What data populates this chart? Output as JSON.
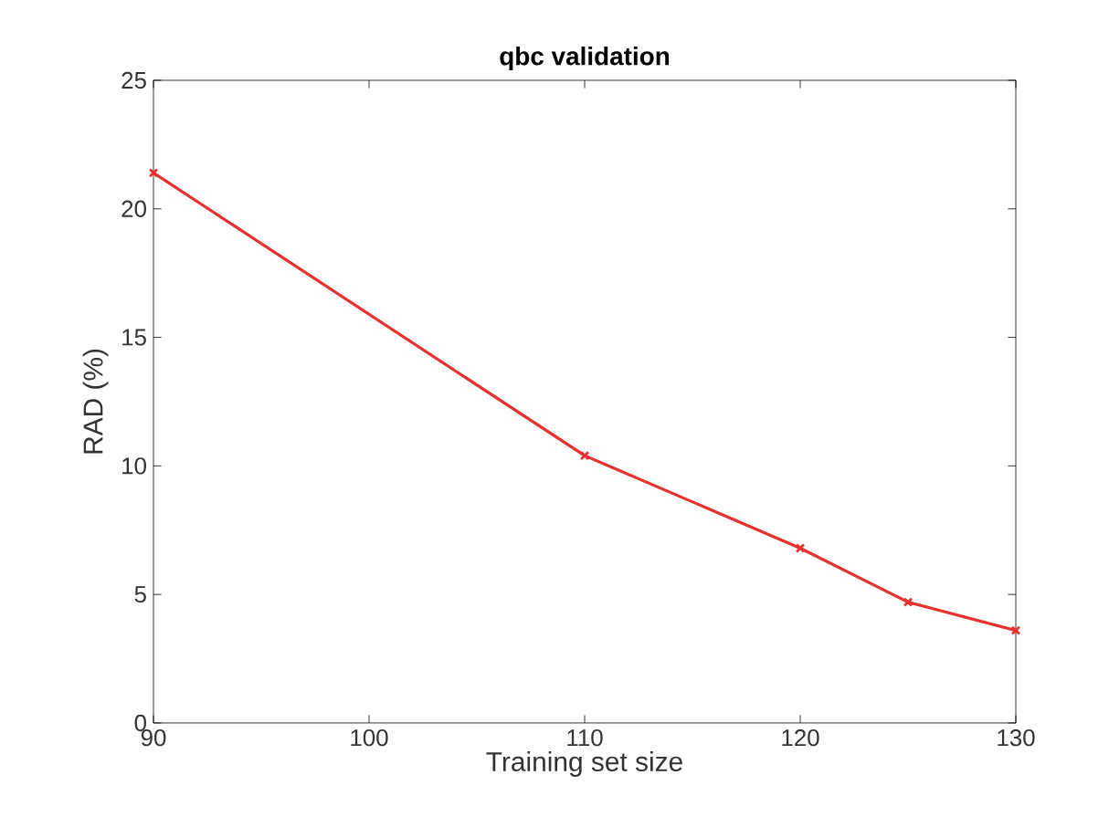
{
  "chart_data": {
    "type": "line",
    "title": "qbc validation",
    "xlabel": "Training set size",
    "ylabel": "RAD (%)",
    "x": [
      90,
      110,
      120,
      125,
      130
    ],
    "series": [
      {
        "color": "#e8312f",
        "values": [
          21.4,
          10.4,
          6.8,
          4.7,
          3.6
        ]
      }
    ],
    "xlim": [
      90,
      130
    ],
    "xticks": [
      90,
      100,
      110,
      120,
      130
    ],
    "ylim": [
      0,
      25
    ],
    "yticks": [
      0,
      5,
      10,
      15,
      20,
      25
    ],
    "marker": "cross",
    "line_style": "solid"
  }
}
